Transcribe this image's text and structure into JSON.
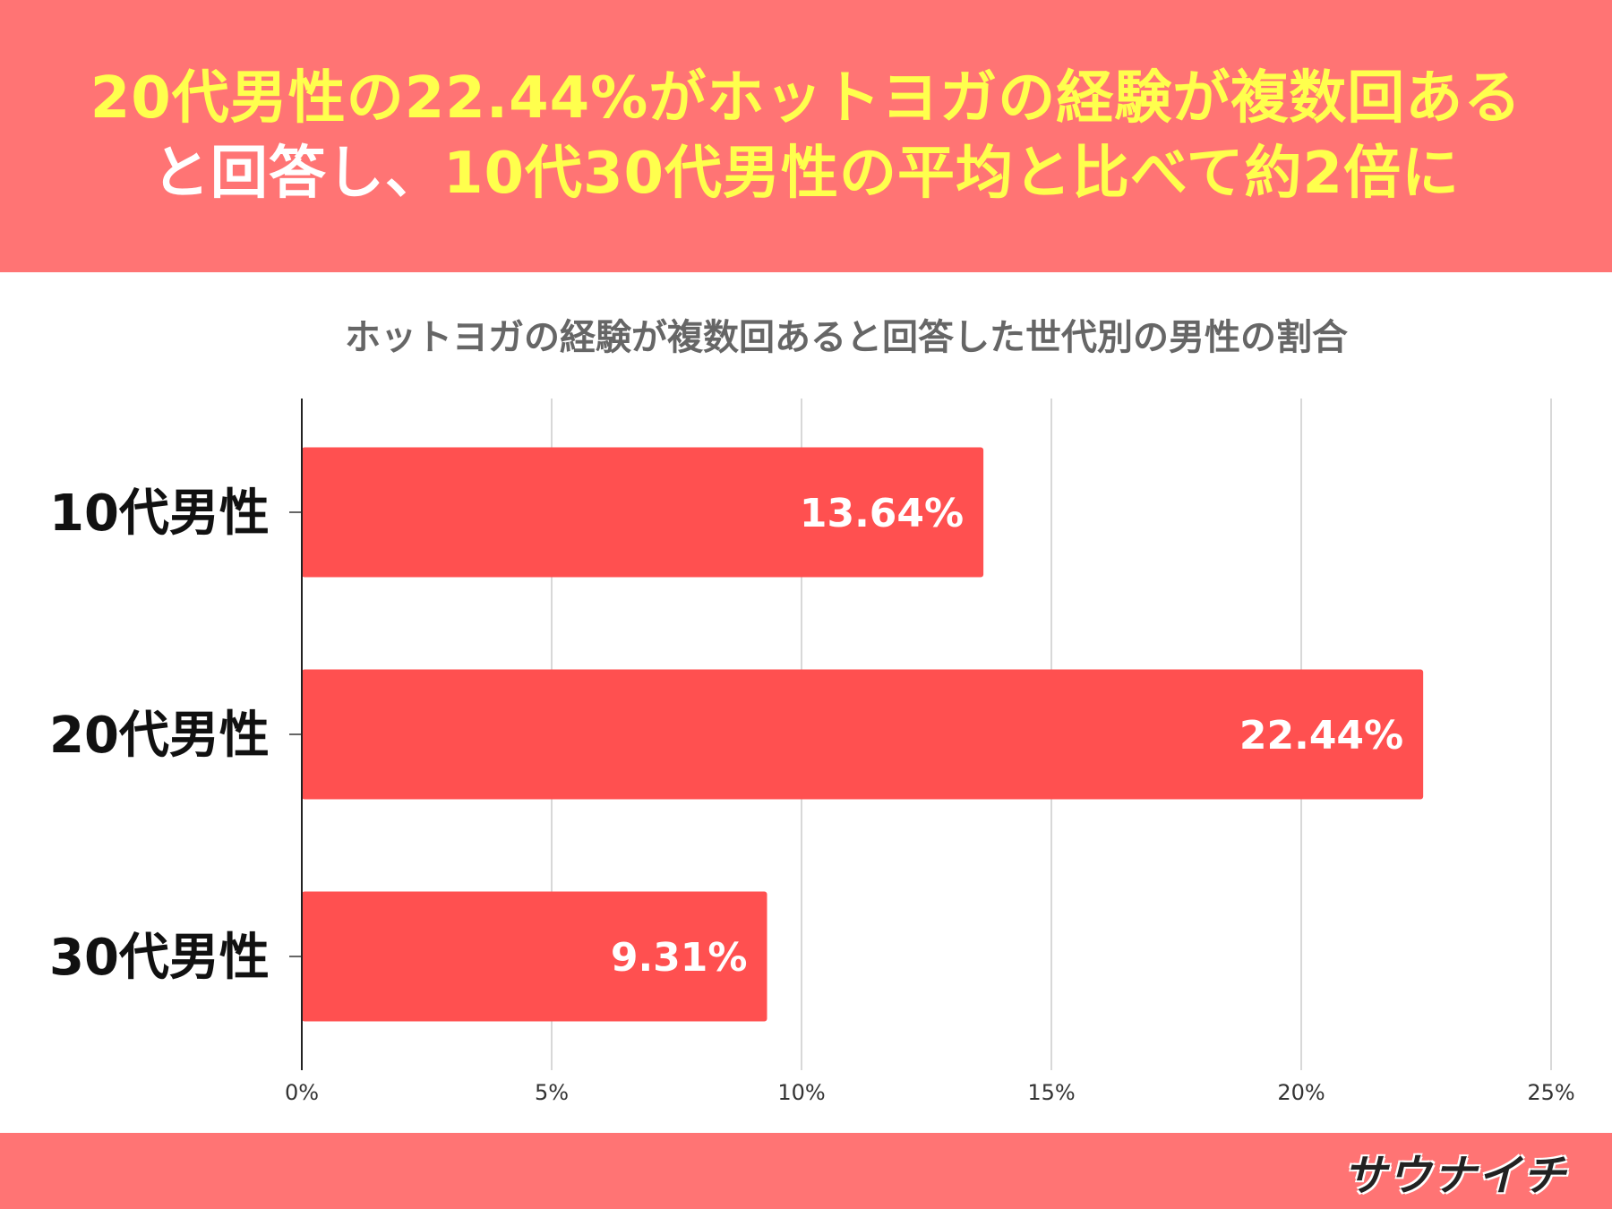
{
  "headline": {
    "line1_part1": "20代男性の22.44%がホットヨガの経験が複数回ある",
    "line2_part1": "と回答し、",
    "line2_part2": "10代30代男性の平均と比べて約2倍に"
  },
  "logo": {
    "text": "サウナイチ"
  },
  "colors": {
    "header_bg": "#ff7474",
    "bar": "#ff5050",
    "headline_yellow": "#ffff4d"
  },
  "chart_data": {
    "type": "bar",
    "orientation": "horizontal",
    "title": "ホットヨガの経験が複数回あると回答した世代別の男性の割合",
    "categories": [
      "10代男性",
      "20代男性",
      "30代男性"
    ],
    "values": [
      13.64,
      22.44,
      9.31
    ],
    "value_labels": [
      "13.64%",
      "22.44%",
      "9.31%"
    ],
    "xlim": [
      0,
      25
    ],
    "xticks": [
      0,
      5,
      10,
      15,
      20,
      25
    ],
    "xtick_labels": [
      "0%",
      "5%",
      "10%",
      "15%",
      "20%",
      "25%"
    ],
    "grid": true,
    "legend": "none"
  }
}
